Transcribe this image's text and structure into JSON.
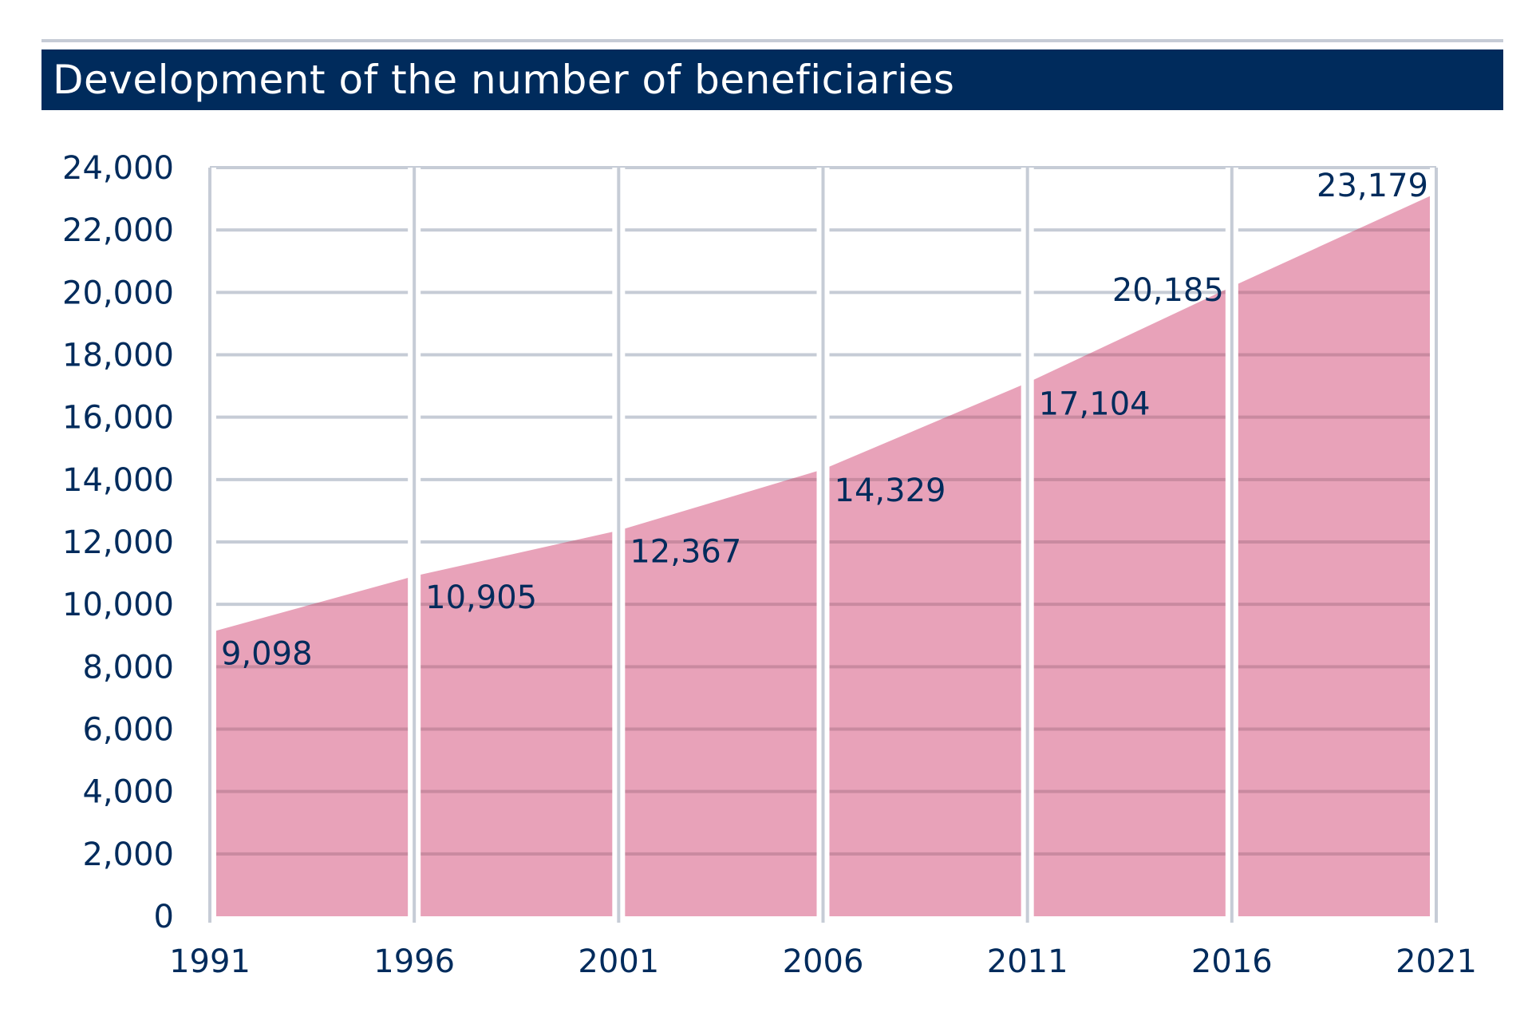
{
  "chart_data": {
    "type": "area",
    "title": "Development of the number of beneficiaries",
    "x": [
      1991,
      1996,
      2001,
      2006,
      2011,
      2016,
      2021
    ],
    "x_tick_labels": [
      "1991",
      "1996",
      "2001",
      "2006",
      "2011",
      "2016",
      "2021"
    ],
    "values": [
      9098,
      10905,
      12367,
      14329,
      17104,
      20185,
      23179
    ],
    "data_labels": [
      "9,098",
      "10,905",
      "12,367",
      "14,329",
      "17,104",
      "20,185",
      "23,179"
    ],
    "y_ticks": [
      0,
      2000,
      4000,
      6000,
      8000,
      10000,
      12000,
      14000,
      16000,
      18000,
      20000,
      22000,
      24000
    ],
    "y_tick_labels": [
      "0",
      "2,000",
      "4,000",
      "6,000",
      "8,000",
      "10,000",
      "12,000",
      "14,000",
      "16,000",
      "18,000",
      "20,000",
      "22,000",
      "24,000"
    ],
    "ylim": [
      0,
      24000
    ],
    "xlim": [
      1991,
      2021
    ],
    "grid": true,
    "colors": {
      "area": "#e8a2b9",
      "title_bg": "#002b5c",
      "text": "#002b5c",
      "grid": "#c6ccd6",
      "grid_over_area": "#c98aa0"
    }
  }
}
